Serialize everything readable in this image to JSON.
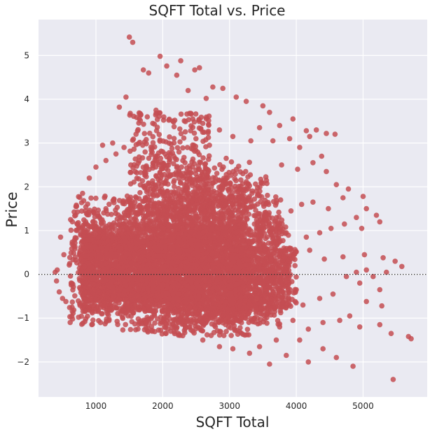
{
  "chart_data": {
    "type": "scatter",
    "title": "SQFT Total vs. Price",
    "xlabel": "SQFT Total",
    "ylabel": "Price",
    "xlim": [
      140,
      5960
    ],
    "ylim": [
      -2.8,
      5.82
    ],
    "xticks": [
      1000,
      2000,
      3000,
      4000,
      5000
    ],
    "yticks": [
      -2,
      -1,
      0,
      1,
      2,
      3,
      4,
      5
    ],
    "xtick_labels": [
      "1000",
      "2000",
      "3000",
      "4000",
      "5000"
    ],
    "ytick_labels": [
      "−2",
      "−1",
      "0",
      "1",
      "2",
      "3",
      "4",
      "5"
    ],
    "grid": true,
    "reference_line": {
      "y": 0,
      "style": "dotted"
    },
    "series": [
      {
        "color": "#c44e52",
        "points": [
          [
            1500,
            5.42
          ],
          [
            1550,
            5.3
          ],
          [
            1960,
            4.98
          ],
          [
            2270,
            4.88
          ],
          [
            2480,
            4.67
          ],
          [
            1710,
            4.67
          ],
          [
            2060,
            4.76
          ],
          [
            1790,
            4.6
          ],
          [
            2210,
            4.55
          ],
          [
            2550,
            4.72
          ],
          [
            2750,
            4.28
          ],
          [
            2900,
            4.25
          ],
          [
            3100,
            4.05
          ],
          [
            2380,
            4.2
          ],
          [
            2650,
            4.02
          ],
          [
            1450,
            4.05
          ],
          [
            1350,
            3.82
          ],
          [
            1900,
            3.75
          ],
          [
            3250,
            3.95
          ],
          [
            3500,
            3.85
          ],
          [
            3600,
            3.7
          ],
          [
            3750,
            3.4
          ],
          [
            3950,
            3.55
          ],
          [
            4150,
            3.28
          ],
          [
            4300,
            3.3
          ],
          [
            4450,
            3.22
          ],
          [
            4580,
            3.2
          ],
          [
            4200,
            3.15
          ],
          [
            3900,
            3.1
          ],
          [
            3650,
            3.05
          ],
          [
            3450,
            3.35
          ],
          [
            3320,
            3.05
          ],
          [
            3050,
            3.15
          ],
          [
            2850,
            3.3
          ],
          [
            2600,
            3.45
          ],
          [
            2450,
            3.55
          ],
          [
            2150,
            3.5
          ],
          [
            1850,
            3.45
          ],
          [
            1600,
            3.2
          ],
          [
            1250,
            3.0
          ],
          [
            1100,
            2.95
          ],
          [
            1420,
            2.9
          ],
          [
            4050,
            2.9
          ],
          [
            4380,
            2.7
          ],
          [
            4250,
            2.55
          ],
          [
            4020,
            2.4
          ],
          [
            3780,
            2.5
          ],
          [
            4450,
            2.35
          ],
          [
            4600,
            2.05
          ],
          [
            4780,
            1.95
          ],
          [
            5000,
            1.78
          ],
          [
            4700,
            1.75
          ],
          [
            4480,
            1.5
          ],
          [
            4250,
            1.65
          ],
          [
            4080,
            1.6
          ],
          [
            3920,
            1.45
          ],
          [
            5050,
            1.5
          ],
          [
            5200,
            1.35
          ],
          [
            5250,
            1.2
          ],
          [
            4900,
            1.3
          ],
          [
            4720,
            1.15
          ],
          [
            4520,
            1.05
          ],
          [
            4350,
            0.95
          ],
          [
            4980,
            1.05
          ],
          [
            4150,
            0.85
          ],
          [
            4200,
            0.55
          ],
          [
            4420,
            0.35
          ],
          [
            4700,
            0.4
          ],
          [
            5020,
            0.45
          ],
          [
            5300,
            0.38
          ],
          [
            5480,
            0.3
          ],
          [
            5580,
            0.18
          ],
          [
            5350,
            0.05
          ],
          [
            5050,
            0.1
          ],
          [
            4900,
            0.05
          ],
          [
            4750,
            -0.05
          ],
          [
            5150,
            -0.05
          ],
          [
            4950,
            -0.2
          ],
          [
            5250,
            -0.35
          ],
          [
            4550,
            -0.45
          ],
          [
            4350,
            -0.55
          ],
          [
            4100,
            -0.7
          ],
          [
            5280,
            -0.72
          ],
          [
            5050,
            -0.62
          ],
          [
            4800,
            -0.95
          ],
          [
            4650,
            -1.05
          ],
          [
            4400,
            -1.1
          ],
          [
            4180,
            -1.25
          ],
          [
            4950,
            -1.2
          ],
          [
            5250,
            -1.15
          ],
          [
            5420,
            -1.35
          ],
          [
            5680,
            -1.42
          ],
          [
            5720,
            -1.47
          ],
          [
            4050,
            -1.5
          ],
          [
            4400,
            -1.7
          ],
          [
            4600,
            -1.9
          ],
          [
            4850,
            -2.1
          ],
          [
            4180,
            -2.0
          ],
          [
            3600,
            -2.05
          ],
          [
            3850,
            -1.85
          ],
          [
            3300,
            -1.8
          ],
          [
            5450,
            -2.4
          ],
          [
            3700,
            -1.5
          ],
          [
            3450,
            -1.65
          ],
          [
            3050,
            -1.7
          ],
          [
            2850,
            -1.65
          ],
          [
            2600,
            -1.5
          ],
          [
            2300,
            -1.4
          ],
          [
            2050,
            -1.35
          ],
          [
            3950,
            -1.05
          ],
          [
            3750,
            -1.2
          ],
          [
            4000,
            -0.35
          ],
          [
            3900,
            0.35
          ],
          [
            3700,
            0.75
          ],
          [
            3550,
            1.25
          ],
          [
            3400,
            1.9
          ],
          [
            3200,
            2.3
          ],
          [
            2950,
            2.65
          ],
          [
            2700,
            2.95
          ],
          [
            3850,
            0.95
          ],
          [
            3980,
            0.2
          ],
          [
            3800,
            -0.65
          ],
          [
            470,
            0.85
          ],
          [
            420,
            0.1
          ],
          [
            390,
            0.05
          ],
          [
            410,
            -0.15
          ],
          [
            450,
            -0.4
          ],
          [
            500,
            -0.55
          ],
          [
            520,
            0.45
          ],
          [
            550,
            -0.62
          ],
          [
            620,
            1.25
          ],
          [
            700,
            1.55
          ],
          [
            800,
            1.85
          ],
          [
            900,
            2.2
          ],
          [
            1000,
            2.45
          ],
          [
            1150,
            2.6
          ],
          [
            1300,
            2.75
          ],
          [
            1700,
            2.95
          ],
          [
            2000,
            2.8
          ],
          [
            2300,
            2.6
          ],
          [
            2550,
            2.4
          ],
          [
            2850,
            2.15
          ],
          [
            3100,
            1.95
          ],
          [
            3350,
            1.55
          ],
          [
            3600,
            1.05
          ],
          [
            3900,
            0.6
          ]
        ],
        "dense_cloud": [
          [
            600,
            3800,
            -1.15,
            1.8,
            1200
          ],
          [
            750,
            3200,
            -0.85,
            1.15,
            1500
          ],
          [
            800,
            2600,
            -0.6,
            0.85,
            1500
          ],
          [
            1400,
            3200,
            -1.35,
            1.7,
            500
          ],
          [
            1700,
            3300,
            -1.4,
            2.6,
            700
          ],
          [
            2200,
            3600,
            -1.1,
            2.3,
            600
          ],
          [
            1500,
            2700,
            1.4,
            3.7,
            300
          ],
          [
            2400,
            3900,
            -0.8,
            1.1,
            500
          ],
          [
            3000,
            4000,
            -0.8,
            0.6,
            350
          ]
        ]
      }
    ]
  }
}
